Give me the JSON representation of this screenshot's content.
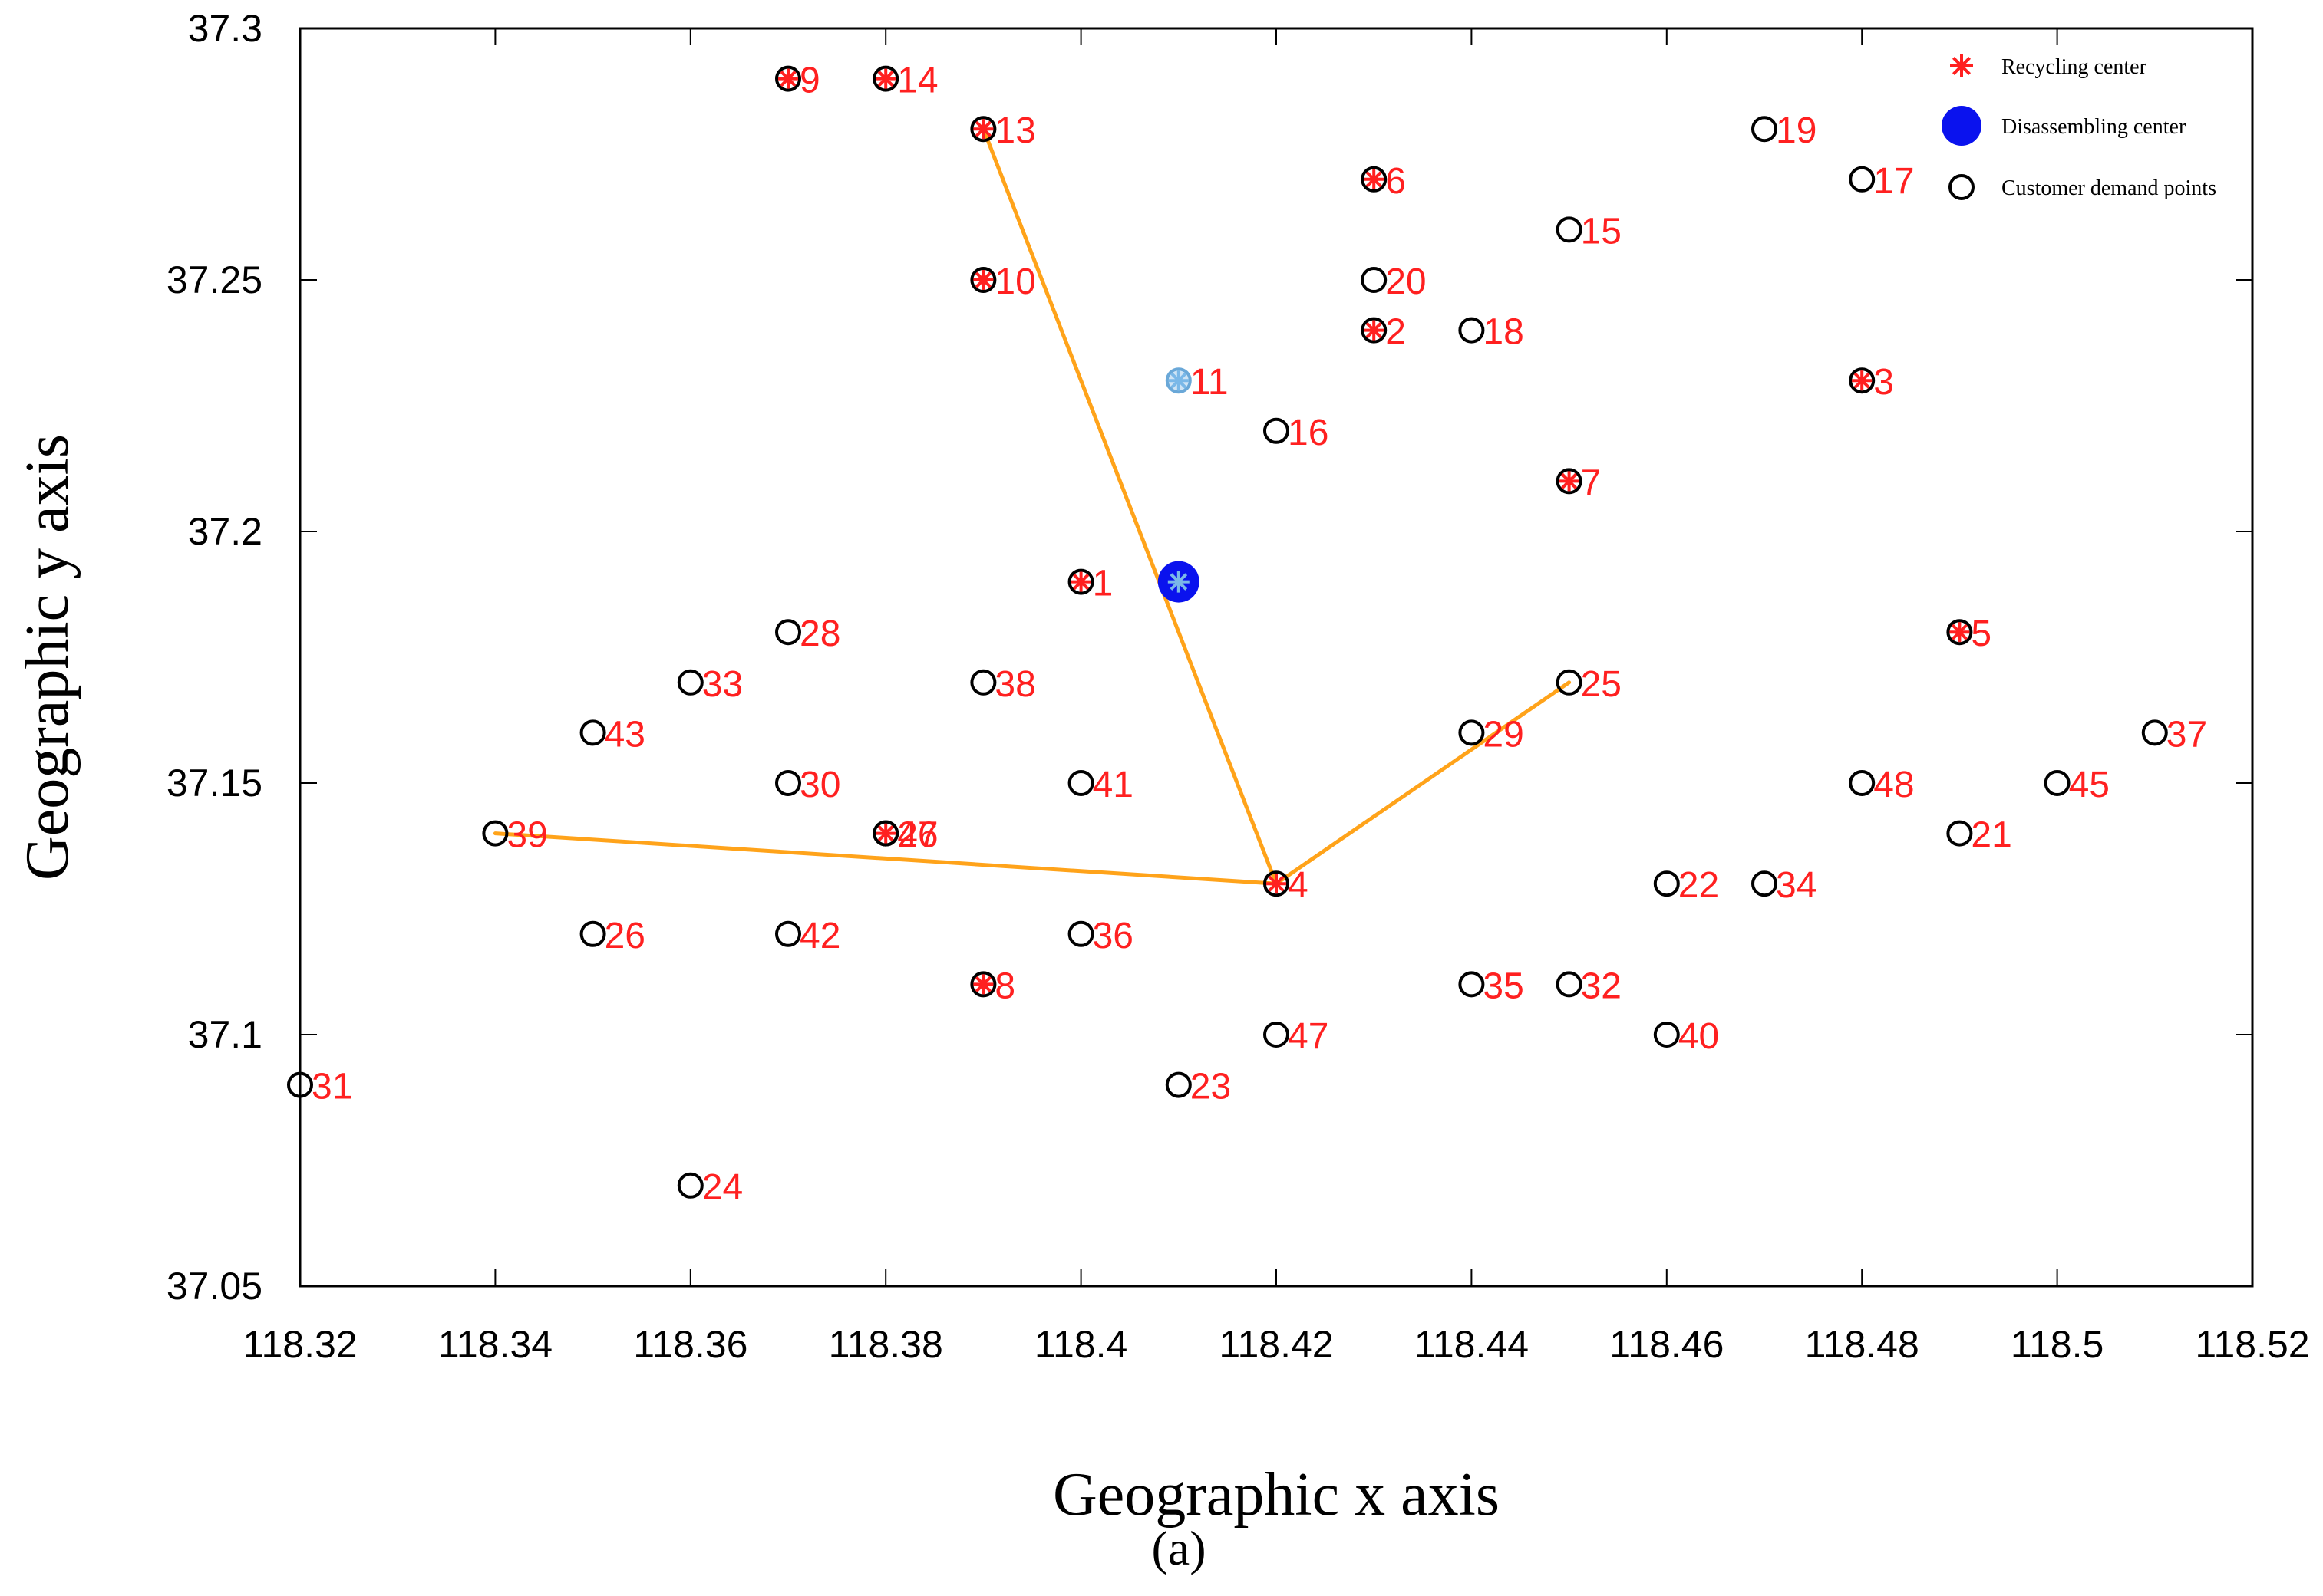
{
  "chart_data": {
    "type": "scatter",
    "xlabel": "Geographic x axis",
    "ylabel": "Geographic y axis",
    "caption": "(a)",
    "xlim": [
      118.32,
      118.52
    ],
    "ylim": [
      37.05,
      37.3
    ],
    "xticks": [
      118.32,
      118.34,
      118.36,
      118.38,
      118.4,
      118.42,
      118.44,
      118.46,
      118.48,
      118.5,
      118.52
    ],
    "xtick_labels": [
      "118.32",
      "118.34",
      "118.36",
      "118.38",
      "118.4",
      "118.42",
      "118.44",
      "118.46",
      "118.48",
      "118.5",
      "118.52"
    ],
    "yticks": [
      37.05,
      37.1,
      37.15,
      37.2,
      37.25,
      37.3
    ],
    "ytick_labels": [
      "37.05",
      "37.1",
      "37.15",
      "37.2",
      "37.25",
      "37.3"
    ],
    "legend": {
      "position": "top-right",
      "items": [
        {
          "label": "Recycling center",
          "marker": "asterisk",
          "color": "#ff2020"
        },
        {
          "label": "Disassembling center",
          "marker": "filled-circle",
          "color": "#0a12ee"
        },
        {
          "label": "Customer demand points",
          "marker": "open-circle",
          "color": "#000000"
        }
      ]
    },
    "colors": {
      "customer": "#000000",
      "recycling": "#ff2020",
      "disassembling": "#0a12ee",
      "label": "#ff2020",
      "route": "#ffa31a",
      "center11": "#7ab8e8"
    },
    "customer_points": [
      {
        "id": "1",
        "x": 118.4,
        "y": 37.19,
        "recycling": true
      },
      {
        "id": "2",
        "x": 118.43,
        "y": 37.24,
        "recycling": true
      },
      {
        "id": "3",
        "x": 118.48,
        "y": 37.23,
        "recycling": true
      },
      {
        "id": "4",
        "x": 118.42,
        "y": 37.13,
        "recycling": true
      },
      {
        "id": "5",
        "x": 118.49,
        "y": 37.18,
        "recycling": true
      },
      {
        "id": "6",
        "x": 118.43,
        "y": 37.27,
        "recycling": true
      },
      {
        "id": "7",
        "x": 118.45,
        "y": 37.21,
        "recycling": true
      },
      {
        "id": "8",
        "x": 118.39,
        "y": 37.11,
        "recycling": true
      },
      {
        "id": "9",
        "x": 118.37,
        "y": 37.29,
        "recycling": true
      },
      {
        "id": "10",
        "x": 118.39,
        "y": 37.25,
        "recycling": true
      },
      {
        "id": "11",
        "x": 118.41,
        "y": 37.23,
        "recycling": false
      },
      {
        "id": "13",
        "x": 118.39,
        "y": 37.28,
        "recycling": true
      },
      {
        "id": "14",
        "x": 118.38,
        "y": 37.29,
        "recycling": true
      },
      {
        "id": "15",
        "x": 118.45,
        "y": 37.26,
        "recycling": false
      },
      {
        "id": "16",
        "x": 118.42,
        "y": 37.22,
        "recycling": false
      },
      {
        "id": "17",
        "x": 118.48,
        "y": 37.27,
        "recycling": false
      },
      {
        "id": "18",
        "x": 118.44,
        "y": 37.24,
        "recycling": false
      },
      {
        "id": "19",
        "x": 118.47,
        "y": 37.28,
        "recycling": false
      },
      {
        "id": "20",
        "x": 118.43,
        "y": 37.25,
        "recycling": false
      },
      {
        "id": "21",
        "x": 118.49,
        "y": 37.14,
        "recycling": false
      },
      {
        "id": "22",
        "x": 118.46,
        "y": 37.13,
        "recycling": false
      },
      {
        "id": "23",
        "x": 118.41,
        "y": 37.09,
        "recycling": false
      },
      {
        "id": "24",
        "x": 118.36,
        "y": 37.07,
        "recycling": false
      },
      {
        "id": "25",
        "x": 118.45,
        "y": 37.17,
        "recycling": false
      },
      {
        "id": "26",
        "x": 118.35,
        "y": 37.12,
        "recycling": false
      },
      {
        "id": "27",
        "x": 118.38,
        "y": 37.14,
        "recycling": true
      },
      {
        "id": "28",
        "x": 118.37,
        "y": 37.18,
        "recycling": false
      },
      {
        "id": "29",
        "x": 118.44,
        "y": 37.16,
        "recycling": false
      },
      {
        "id": "30",
        "x": 118.37,
        "y": 37.15,
        "recycling": false
      },
      {
        "id": "31",
        "x": 118.32,
        "y": 37.09,
        "recycling": false
      },
      {
        "id": "32",
        "x": 118.45,
        "y": 37.11,
        "recycling": false
      },
      {
        "id": "33",
        "x": 118.36,
        "y": 37.17,
        "recycling": false
      },
      {
        "id": "34",
        "x": 118.47,
        "y": 37.13,
        "recycling": false
      },
      {
        "id": "35",
        "x": 118.44,
        "y": 37.11,
        "recycling": false
      },
      {
        "id": "36",
        "x": 118.4,
        "y": 37.12,
        "recycling": false
      },
      {
        "id": "37",
        "x": 118.51,
        "y": 37.16,
        "recycling": false
      },
      {
        "id": "38",
        "x": 118.39,
        "y": 37.17,
        "recycling": false
      },
      {
        "id": "39",
        "x": 118.34,
        "y": 37.14,
        "recycling": false
      },
      {
        "id": "40",
        "x": 118.46,
        "y": 37.1,
        "recycling": false
      },
      {
        "id": "41",
        "x": 118.4,
        "y": 37.15,
        "recycling": false
      },
      {
        "id": "42",
        "x": 118.37,
        "y": 37.12,
        "recycling": false
      },
      {
        "id": "43",
        "x": 118.35,
        "y": 37.16,
        "recycling": false
      },
      {
        "id": "45",
        "x": 118.5,
        "y": 37.15,
        "recycling": false
      },
      {
        "id": "46",
        "x": 118.38,
        "y": 37.14,
        "recycling": false
      },
      {
        "id": "47",
        "x": 118.42,
        "y": 37.1,
        "recycling": false
      },
      {
        "id": "48",
        "x": 118.48,
        "y": 37.15,
        "recycling": false
      }
    ],
    "disassembling_center": {
      "x": 118.41,
      "y": 37.19
    },
    "light_center": {
      "id": "11",
      "x": 118.41,
      "y": 37.23
    },
    "routes": [
      [
        {
          "x": 118.39,
          "y": 37.28
        },
        {
          "x": 118.42,
          "y": 37.13
        }
      ],
      [
        {
          "x": 118.34,
          "y": 37.14
        },
        {
          "x": 118.42,
          "y": 37.13
        }
      ],
      [
        {
          "x": 118.45,
          "y": 37.17
        },
        {
          "x": 118.42,
          "y": 37.13
        }
      ]
    ]
  }
}
